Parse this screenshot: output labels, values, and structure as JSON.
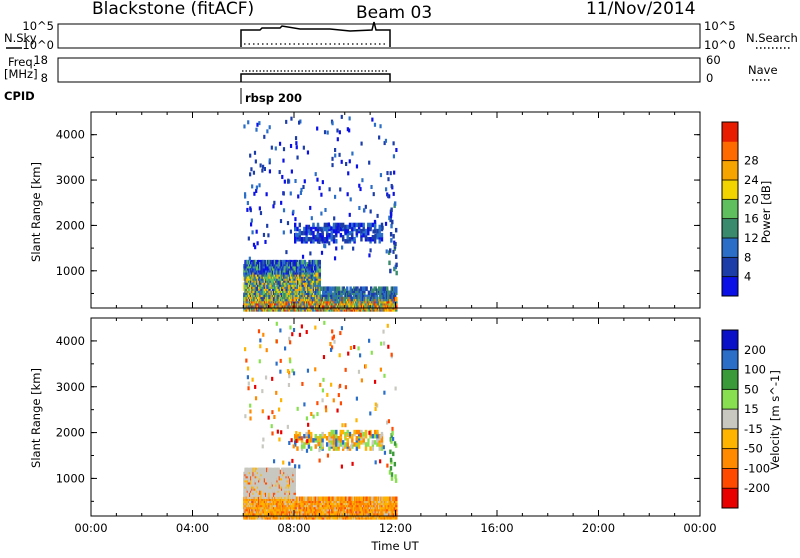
{
  "header": {
    "title": "Blackstone (fitACF)",
    "beam": "Beam 03",
    "date": "11/Nov/2014"
  },
  "status_panels": {
    "nsky_label": "N.Sky",
    "nsky_ticks": [
      "10^5",
      "10^0"
    ],
    "nsearch_label": "N.Search",
    "nsearch_ticks": [
      "10^5",
      "10^0"
    ],
    "freq_label_1": "Freq.",
    "freq_label_2": "[MHz]",
    "freq_ticks": [
      "18",
      "8"
    ],
    "nave_label": "Nave",
    "nave_ticks": [
      "60",
      "0"
    ],
    "cpid_label": "CPID",
    "cpid_program": "rbsp 200"
  },
  "colors": {
    "power_scale": [
      "#0a10e6",
      "#1c3ca8",
      "#2a6ec8",
      "#3a8a6e",
      "#5fbf5f",
      "#f2d400",
      "#f6a500",
      "#ff6a00",
      "#e81c00"
    ],
    "velocity_scale": [
      "#e80000",
      "#ff4a00",
      "#ff8a00",
      "#ffb400",
      "#c8c8c0",
      "#88e050",
      "#3a9a3a",
      "#2a6ec8",
      "#0a10c8"
    ]
  },
  "chart_data": [
    {
      "type": "heatmap",
      "title": "",
      "xlabel": "",
      "ylabel": "Slant Range [km]",
      "x_ticks": [
        "00:00",
        "04:00",
        "08:00",
        "12:00",
        "16:00",
        "20:00",
        "00:00"
      ],
      "xlim": [
        0,
        24
      ],
      "y_ticks": [
        "1000",
        "2000",
        "3000",
        "4000"
      ],
      "ylim": [
        180,
        4500
      ],
      "colorbar_label": "Power [dB]",
      "colorbar_ticks": [
        "4",
        "8",
        "12",
        "16",
        "20",
        "24",
        "28"
      ],
      "data_time_range_hours": [
        6,
        12
      ],
      "regions": [
        {
          "t": [
            6.0,
            12.0
          ],
          "range": [
            200,
            420
          ],
          "level": "high"
        },
        {
          "t": [
            6.0,
            8.5
          ],
          "range": [
            300,
            1250
          ],
          "level": "medium"
        },
        {
          "t": [
            8.0,
            11.5
          ],
          "range": [
            1700,
            2100
          ],
          "level": "low"
        },
        {
          "t": [
            6.0,
            12.0
          ],
          "range": [
            2000,
            4500
          ],
          "level": "scattered"
        }
      ]
    },
    {
      "type": "heatmap",
      "title": "",
      "xlabel": "Time UT",
      "ylabel": "Slant Range [km]",
      "x_ticks": [
        "00:00",
        "04:00",
        "08:00",
        "12:00",
        "16:00",
        "20:00",
        "00:00"
      ],
      "xlim": [
        0,
        24
      ],
      "y_ticks": [
        "1000",
        "2000",
        "3000",
        "4000"
      ],
      "ylim": [
        180,
        4500
      ],
      "colorbar_label": "Velocity [m s^-1]",
      "colorbar_ticks": [
        "200",
        "100",
        "50",
        "15",
        "-15",
        "-50",
        "-100",
        "-200"
      ],
      "data_time_range_hours": [
        6,
        12
      ],
      "regions": [
        {
          "t": [
            6.0,
            12.0
          ],
          "range": [
            200,
            700
          ],
          "level": "-50 to -15"
        },
        {
          "t": [
            6.0,
            8.0
          ],
          "range": [
            700,
            1250
          ],
          "level": "-15 to 15"
        },
        {
          "t": [
            11.5,
            12.0
          ],
          "range": [
            1000,
            2000
          ],
          "level": "15 to 50"
        },
        {
          "t": [
            6.0,
            12.0
          ],
          "range": [
            1500,
            4500
          ],
          "level": "scattered"
        }
      ]
    }
  ]
}
